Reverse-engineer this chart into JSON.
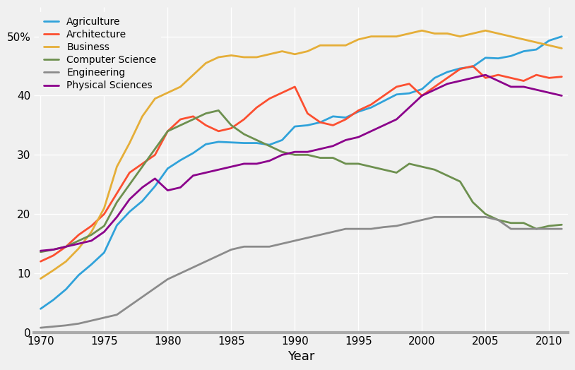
{
  "title": "",
  "xlabel": "Year",
  "ylabel": "",
  "background_color": "#e8e8e8",
  "grid_color": "#ffffff",
  "years": [
    1970,
    1971,
    1972,
    1973,
    1974,
    1975,
    1976,
    1977,
    1978,
    1979,
    1980,
    1981,
    1982,
    1983,
    1984,
    1985,
    1986,
    1987,
    1988,
    1989,
    1990,
    1991,
    1992,
    1993,
    1994,
    1995,
    1996,
    1997,
    1998,
    1999,
    2000,
    2001,
    2002,
    2003,
    2004,
    2005,
    2006,
    2007,
    2008,
    2009,
    2010,
    2011
  ],
  "series": {
    "Agriculture": {
      "color": "#30a2da",
      "data": [
        4.0,
        5.5,
        7.3,
        9.7,
        11.5,
        13.5,
        18.1,
        20.4,
        22.2,
        24.7,
        27.7,
        29.1,
        30.3,
        31.8,
        32.2,
        32.1,
        32.0,
        32.0,
        31.7,
        32.5,
        34.8,
        35.0,
        35.5,
        36.5,
        36.3,
        37.3,
        38.0,
        39.1,
        40.2,
        40.4,
        41.1,
        43.0,
        44.0,
        44.6,
        44.9,
        46.4,
        46.3,
        46.7,
        47.5,
        47.8,
        49.3,
        50.0
      ]
    },
    "Architecture": {
      "color": "#fc4f30",
      "data": [
        12.0,
        13.0,
        14.5,
        16.5,
        18.0,
        20.0,
        23.5,
        27.0,
        28.5,
        30.0,
        34.0,
        36.0,
        36.5,
        35.0,
        34.0,
        34.5,
        36.0,
        38.0,
        39.5,
        40.5,
        41.5,
        37.0,
        35.5,
        35.0,
        36.0,
        37.5,
        38.5,
        40.0,
        41.5,
        42.0,
        40.0,
        41.5,
        43.0,
        44.5,
        45.0,
        43.0,
        43.5,
        43.0,
        42.5,
        43.5,
        43.0,
        43.2
      ]
    },
    "Business": {
      "color": "#e5ae38",
      "data": [
        9.1,
        10.5,
        12.0,
        14.2,
        17.0,
        21.0,
        28.0,
        32.0,
        36.5,
        39.5,
        40.5,
        41.5,
        43.5,
        45.5,
        46.5,
        46.8,
        46.5,
        46.5,
        47.0,
        47.5,
        47.0,
        47.5,
        48.5,
        48.5,
        48.5,
        49.5,
        50.0,
        50.0,
        50.0,
        50.5,
        51.0,
        50.5,
        50.5,
        50.0,
        50.5,
        51.0,
        50.5,
        50.0,
        49.5,
        49.0,
        48.5,
        48.0
      ]
    },
    "Computer Science": {
      "color": "#6d904f",
      "data": [
        13.6,
        14.0,
        14.5,
        15.5,
        16.5,
        18.0,
        22.0,
        25.0,
        28.0,
        31.0,
        34.0,
        35.0,
        36.0,
        37.0,
        37.5,
        35.0,
        33.5,
        32.5,
        31.5,
        30.5,
        30.0,
        30.0,
        29.5,
        29.5,
        28.5,
        28.5,
        28.0,
        27.5,
        27.0,
        28.5,
        28.0,
        27.5,
        26.5,
        25.5,
        22.0,
        20.0,
        19.0,
        18.5,
        18.5,
        17.5,
        18.0,
        18.2
      ]
    },
    "Engineering": {
      "color": "#8b8b8b",
      "data": [
        0.8,
        1.0,
        1.2,
        1.5,
        2.0,
        2.5,
        3.0,
        4.5,
        6.0,
        7.5,
        9.0,
        10.0,
        11.0,
        12.0,
        13.0,
        14.0,
        14.5,
        14.5,
        14.5,
        15.0,
        15.5,
        16.0,
        16.5,
        17.0,
        17.5,
        17.5,
        17.5,
        17.8,
        18.0,
        18.5,
        19.0,
        19.5,
        19.5,
        19.5,
        19.5,
        19.5,
        19.0,
        17.5,
        17.5,
        17.5,
        17.5,
        17.5
      ]
    },
    "Physical Sciences": {
      "color": "#8b008b",
      "data": [
        13.8,
        14.0,
        14.5,
        15.0,
        15.5,
        17.0,
        19.5,
        22.5,
        24.5,
        26.0,
        24.0,
        24.5,
        26.5,
        27.0,
        27.5,
        28.0,
        28.5,
        28.5,
        29.0,
        30.0,
        30.5,
        30.5,
        31.0,
        31.5,
        32.5,
        33.0,
        34.0,
        35.0,
        36.0,
        38.0,
        40.0,
        41.0,
        42.0,
        42.5,
        43.0,
        43.5,
        42.5,
        41.5,
        41.5,
        41.0,
        40.5,
        40.0
      ]
    }
  },
  "xlim": [
    1969.5,
    2011.5
  ],
  "ylim": [
    0,
    55
  ],
  "yticks": [
    0,
    10,
    20,
    30,
    40,
    50
  ],
  "ytick_labels": [
    "0",
    "10",
    "20",
    "30",
    "40",
    "50%"
  ],
  "xticks": [
    1970,
    1975,
    1980,
    1985,
    1990,
    1995,
    2000,
    2005,
    2010
  ],
  "figsize": [
    8.14,
    5.24
  ],
  "dpi": 100
}
